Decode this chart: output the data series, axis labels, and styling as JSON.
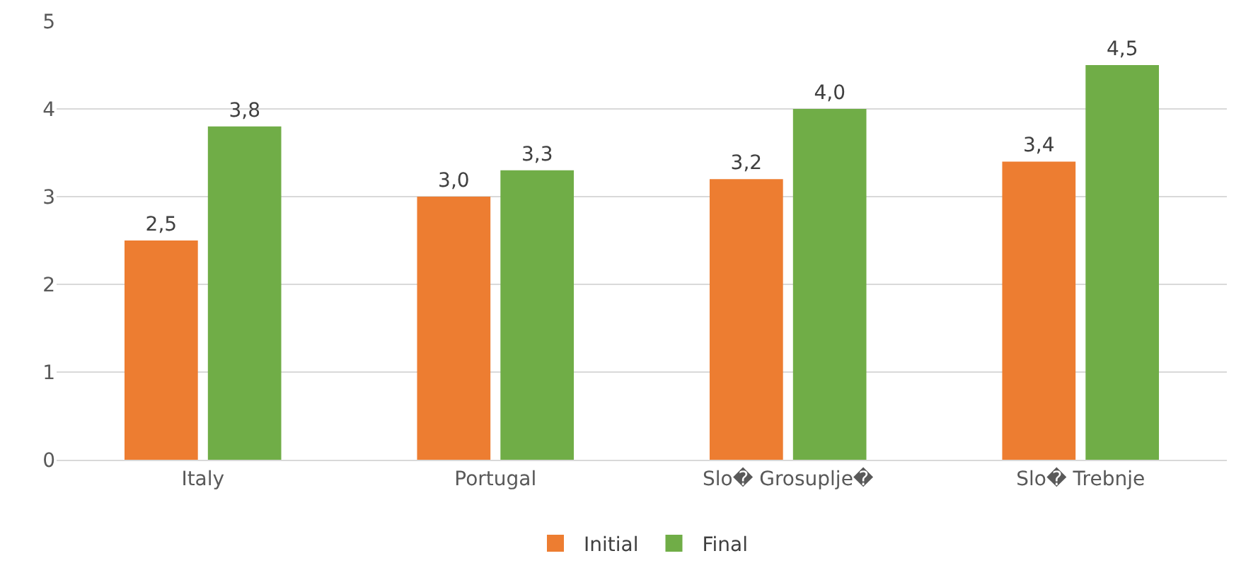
{
  "chart_data": {
    "type": "bar",
    "categories": [
      "Italy",
      "Portugal",
      "Slo� Grosuplje�",
      "Slo� Trebnje"
    ],
    "series": [
      {
        "name": "Initial",
        "color": "#ed7d31",
        "values": [
          2.5,
          3.0,
          3.2,
          3.4
        ],
        "value_labels": [
          "2,5",
          "3,0",
          "3,2",
          "3,4"
        ]
      },
      {
        "name": "Final",
        "color": "#70ad47",
        "values": [
          3.8,
          3.3,
          4.0,
          4.5
        ],
        "value_labels": [
          "3,8",
          "3,3",
          "4,0",
          "4,5"
        ]
      }
    ],
    "ylim": [
      0,
      5
    ],
    "yticks": [
      0,
      1,
      2,
      3,
      4,
      5
    ],
    "grid": "y",
    "legend": "bottom"
  }
}
